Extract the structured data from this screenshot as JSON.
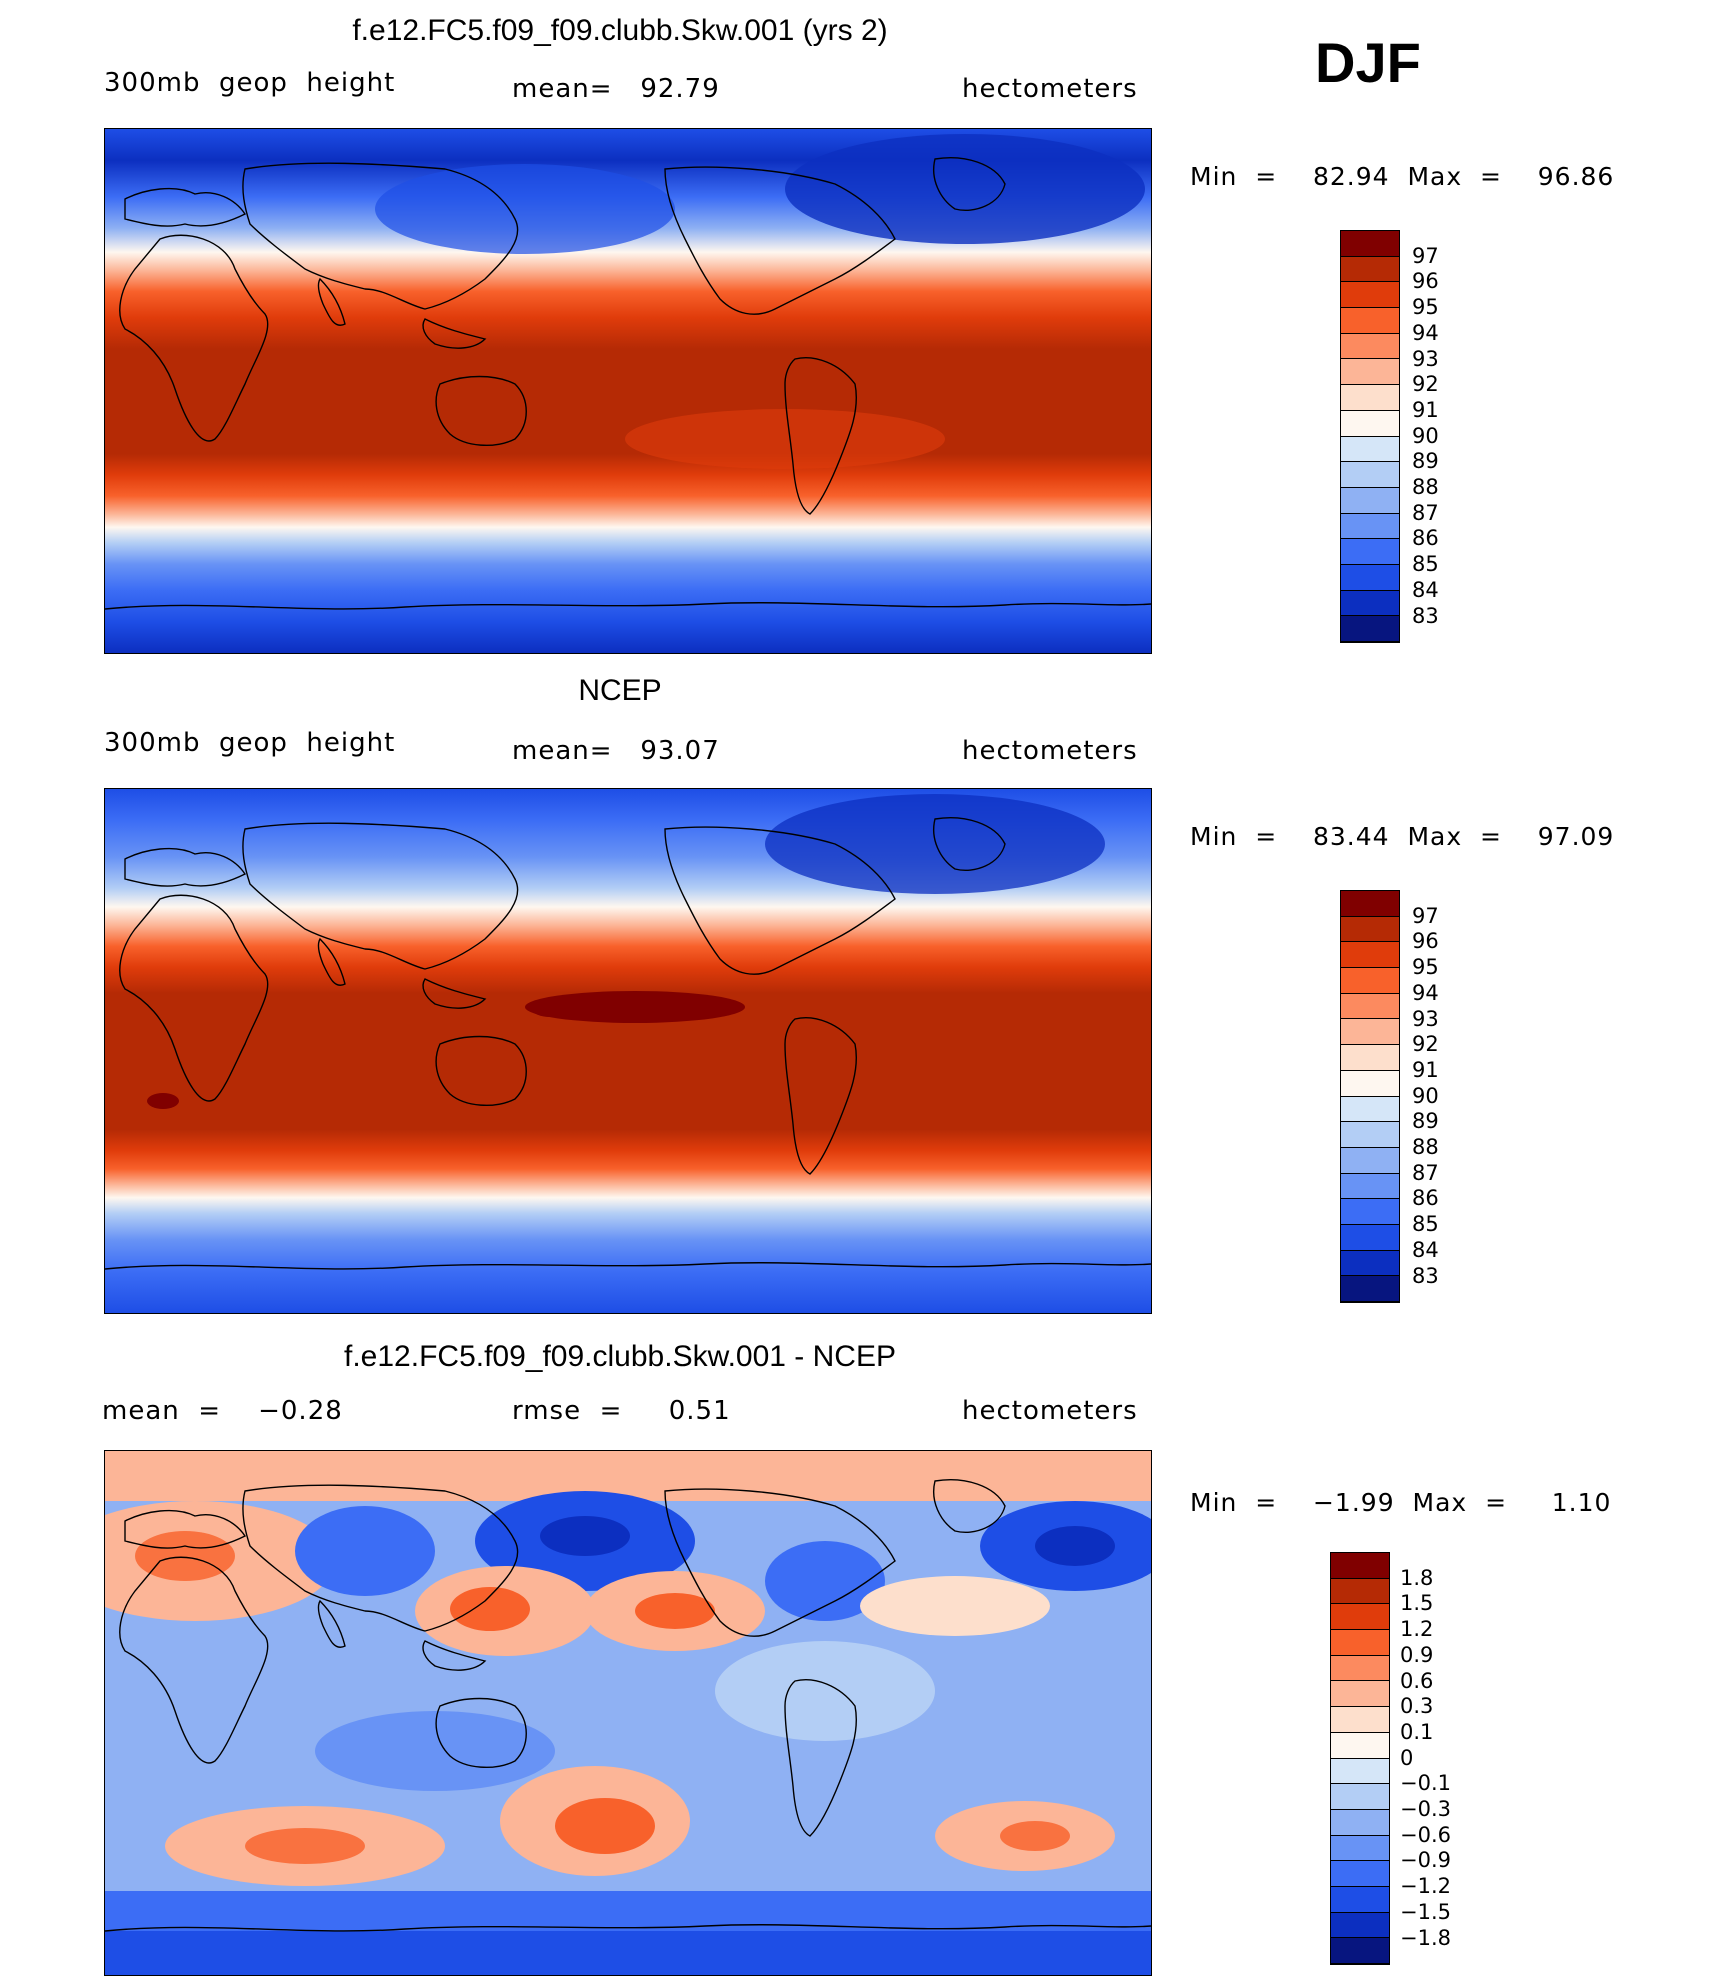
{
  "season": "DJF",
  "colors": {
    "ramp13": [
      "#800000",
      "#b52a05",
      "#e03c0b",
      "#f8612b",
      "#fc8a5f",
      "#fcb597",
      "#fddfcc",
      "#fef7f0",
      "#d5e6f8",
      "#b3cef5",
      "#8fb1f3",
      "#6893f5",
      "#3c6df5",
      "#1e4ee6",
      "#0c2fc0",
      "#07157f"
    ],
    "coast": "#000000"
  },
  "panels": [
    {
      "title": "f.e12.FC5.f09_f09.clubb.Skw.001 (yrs 2)",
      "left_label": "300mb  geop  height",
      "center_label": "mean=   92.79",
      "right_label": "hectometers",
      "min_max": "Min  =    82.94  Max  =    96.86",
      "chart_data": {
        "type": "heatmap",
        "title": "f.e12.FC5.f09_f09.clubb.Skw.001 (yrs 2)",
        "variable": "300mb geop height",
        "units": "hectometers",
        "mean": 92.79,
        "min": 82.94,
        "max": 96.86,
        "colorbar_levels": [
          "97",
          "96",
          "95",
          "94",
          "93",
          "92",
          "91",
          "90",
          "89",
          "88",
          "87",
          "86",
          "85",
          "84",
          "83"
        ],
        "lat_band_means": {
          "lat": [
            80,
            60,
            45,
            30,
            15,
            0,
            -15,
            -30,
            -45,
            -60,
            -75
          ],
          "value": [
            84.5,
            86.5,
            89.5,
            93.5,
            96.0,
            96.0,
            95.5,
            93.5,
            89.0,
            85.0,
            84.0
          ]
        }
      }
    },
    {
      "title": "NCEP",
      "left_label": "300mb  geop  height",
      "center_label": "mean=   93.07",
      "right_label": "hectometers",
      "min_max": "Min  =    83.44  Max  =    97.09",
      "chart_data": {
        "type": "heatmap",
        "title": "NCEP",
        "variable": "300mb geop height",
        "units": "hectometers",
        "mean": 93.07,
        "min": 83.44,
        "max": 97.09,
        "colorbar_levels": [
          "97",
          "96",
          "95",
          "94",
          "93",
          "92",
          "91",
          "90",
          "89",
          "88",
          "87",
          "86",
          "85",
          "84",
          "83"
        ],
        "lat_band_means": {
          "lat": [
            80,
            60,
            45,
            30,
            15,
            0,
            -15,
            -30,
            -45,
            -60,
            -75
          ],
          "value": [
            84.0,
            87.0,
            90.0,
            94.0,
            96.3,
            96.3,
            95.8,
            93.8,
            89.5,
            85.5,
            84.5
          ]
        }
      }
    },
    {
      "title": "f.e12.FC5.f09_f09.clubb.Skw.001 - NCEP",
      "left_label": "mean  =    −0.28",
      "center_label": "rmse  =     0.51",
      "right_label": "hectometers",
      "min_max": "Min  =    −1.99  Max  =     1.10",
      "chart_data": {
        "type": "heatmap",
        "title": "f.e12.FC5.f09_f09.clubb.Skw.001 - NCEP",
        "units": "hectometers",
        "mean": -0.28,
        "rmse": 0.51,
        "min": -1.99,
        "max": 1.1,
        "colorbar_levels": [
          "1.8",
          "1.5",
          "1.2",
          "0.9",
          "0.6",
          "0.3",
          "0.1",
          "0",
          "−0.1",
          "−0.3",
          "−0.6",
          "−0.9",
          "−1.2",
          "−1.5",
          "−1.8"
        ]
      }
    }
  ]
}
